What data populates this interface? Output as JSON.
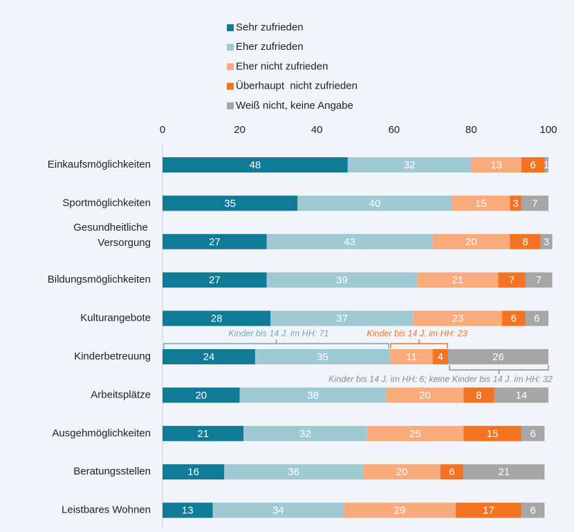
{
  "chart_data": {
    "type": "stacked_bar_horizontal",
    "categories": [
      "Einkaufsmöglichkeiten",
      "Sportmöglichkeiten",
      "Gesundheitliche Versorgung",
      "Bildungsmöglichkeiten",
      "Kulturangebote",
      "Kinderbetreuung",
      "Arbeitsplätze",
      "Ausgehmöglichkeiten",
      "Beratungsstellen",
      "Leistbares Wohnen"
    ],
    "series": [
      {
        "name": "Sehr zufrieden",
        "color": "#0f7b97",
        "values": [
          48,
          35,
          27,
          27,
          28,
          24,
          20,
          21,
          16,
          13
        ]
      },
      {
        "name": "Eher zufrieden",
        "color": "#9fcad3",
        "values": [
          32,
          40,
          43,
          39,
          37,
          35,
          38,
          32,
          36,
          34
        ]
      },
      {
        "name": "Eher nicht zufrieden",
        "color": "#f9ab7b",
        "values": [
          13,
          15,
          20,
          21,
          23,
          11,
          20,
          25,
          20,
          29
        ]
      },
      {
        "name": "Überhaupt  nicht zufrieden",
        "color": "#f47322",
        "values": [
          6,
          3,
          8,
          7,
          6,
          4,
          8,
          15,
          6,
          17
        ]
      },
      {
        "name": "Weiß nicht, keine Angabe",
        "color": "#a6a6a6",
        "values": [
          1,
          7,
          3,
          7,
          6,
          26,
          14,
          6,
          21,
          6
        ]
      }
    ],
    "xlim": [
      0,
      100
    ],
    "xticks": [
      0,
      20,
      40,
      60,
      80,
      100
    ],
    "grid": false,
    "legend": "top",
    "annotations": [
      {
        "text": "Kinder bis 14 J. im HH: 71",
        "color": "#6fa7c0"
      },
      {
        "text": "Kinder bis 14 J. im HH: 23",
        "color": "#f47322"
      },
      {
        "text": "Kinder bis 14 J. im HH: 6; keine Kinder bis 14 J. im HH: 32",
        "color": "#8c8c8c"
      }
    ]
  }
}
